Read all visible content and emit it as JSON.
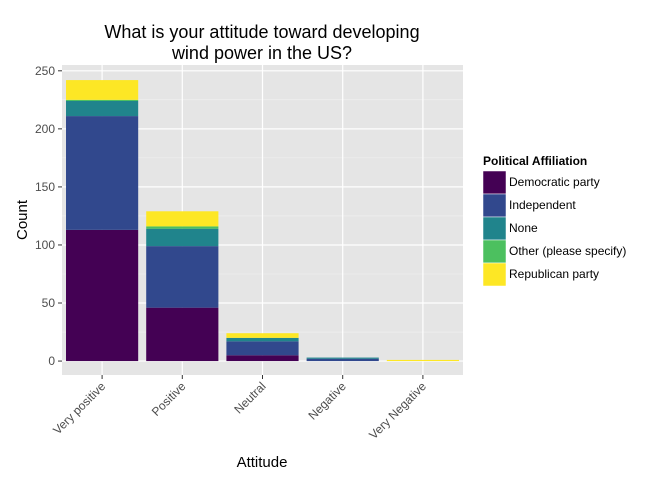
{
  "chart_data": {
    "type": "bar",
    "stacked": true,
    "title_lines": [
      "What is your attitude toward developing",
      "wind power in the US?"
    ],
    "xlabel": "Attitude",
    "ylabel": "Count",
    "categories": [
      "Very positive",
      "Positive",
      "Neutral",
      "Negative",
      "Very Negative"
    ],
    "ylim": [
      -12,
      255
    ],
    "yticks": [
      0,
      50,
      100,
      150,
      200,
      250
    ],
    "grid": true,
    "legend": {
      "title": "Political Affiliation",
      "position": "right"
    },
    "series": [
      {
        "name": "Democratic party",
        "color": "#440154",
        "values": [
          113,
          46,
          5,
          0,
          0
        ]
      },
      {
        "name": "Independent",
        "color": "#31488d",
        "values": [
          98,
          53,
          12,
          2,
          0
        ]
      },
      {
        "name": "None",
        "color": "#20848c",
        "values": [
          13,
          15,
          3,
          1,
          0
        ]
      },
      {
        "name": "Other (please specify)",
        "color": "#4cc05f",
        "values": [
          1,
          2,
          0,
          0,
          0
        ]
      },
      {
        "name": "Republican party",
        "color": "#fde725",
        "values": [
          17,
          13,
          4,
          0,
          1
        ]
      }
    ],
    "colors": {
      "panel": "#e5e5e5",
      "grid_major": "#ffffff",
      "grid_minor": "#f2f2f2"
    }
  }
}
